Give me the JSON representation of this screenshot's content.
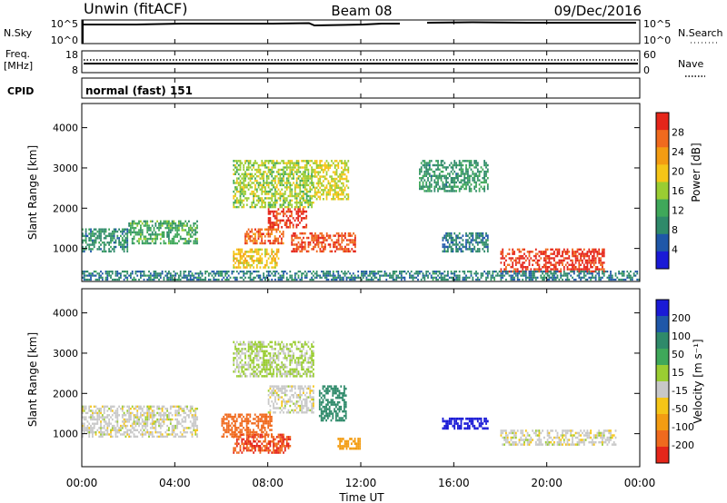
{
  "header": {
    "station": "Unwin (fitACF)",
    "beam": "Beam 08",
    "date": "09/Dec/2016"
  },
  "noise_panel": {
    "left_label": "N.Sky",
    "left_ticks": [
      "10^5",
      "10^0"
    ],
    "right_label": "N.Search",
    "right_ticks": [
      "10^5",
      "10^0"
    ]
  },
  "freq_panel": {
    "left_label_line1": "Freq.",
    "left_label_line2": "[MHz]",
    "left_ticks": [
      "18",
      "8"
    ],
    "right_label": "Nave",
    "right_ticks": [
      "60",
      "0"
    ]
  },
  "cpid_panel": {
    "label": "CPID",
    "text": "normal (fast) 151"
  },
  "x_axis": {
    "label": "Time UT",
    "ticks": [
      "00:00",
      "04:00",
      "08:00",
      "12:00",
      "16:00",
      "20:00",
      "00:00"
    ]
  },
  "colors": {
    "power_scale": [
      "#1a1ad6",
      "#1f57a8",
      "#2f8a6a",
      "#3fa85a",
      "#9acd32",
      "#f5c518",
      "#f39c12",
      "#f06a1e",
      "#e5261a"
    ],
    "velocity_scale": [
      "#e5261a",
      "#f06a1e",
      "#f39c12",
      "#f5c518",
      "#c8c8c8",
      "#9acd32",
      "#3fa85a",
      "#2f8a6a",
      "#1f57a8",
      "#1a1ad6"
    ]
  },
  "chart_data": [
    {
      "type": "heatmap",
      "title": "Power",
      "xlabel": "Time UT",
      "ylabel": "Slant Range [km]",
      "xlim": [
        "00:00",
        "24:00"
      ],
      "ylim": [
        180,
        4600
      ],
      "y_ticks": [
        "1000",
        "2000",
        "3000",
        "4000"
      ],
      "colorbar": {
        "label": "Power [dB]",
        "range": [
          0,
          32
        ],
        "ticks": [
          "4",
          "8",
          "12",
          "16",
          "20",
          "24",
          "28"
        ]
      },
      "regions": [
        {
          "t": [
            0.0,
            2.0
          ],
          "r": [
            900,
            1500
          ],
          "value": 9
        },
        {
          "t": [
            2.0,
            5.0
          ],
          "r": [
            1100,
            1700
          ],
          "value": 12
        },
        {
          "t": [
            6.5,
            10.0
          ],
          "r": [
            2000,
            3200
          ],
          "value": 16
        },
        {
          "t": [
            8.0,
            9.7
          ],
          "r": [
            1500,
            2000
          ],
          "value": 30
        },
        {
          "t": [
            7.0,
            8.7
          ],
          "r": [
            1100,
            1500
          ],
          "value": 27
        },
        {
          "t": [
            6.5,
            8.5
          ],
          "r": [
            500,
            1000
          ],
          "value": 20
        },
        {
          "t": [
            9.0,
            11.8
          ],
          "r": [
            900,
            1400
          ],
          "value": 28
        },
        {
          "t": [
            10.0,
            11.5
          ],
          "r": [
            2200,
            3200
          ],
          "value": 18
        },
        {
          "t": [
            14.5,
            17.5
          ],
          "r": [
            2400,
            3200
          ],
          "value": 10
        },
        {
          "t": [
            15.5,
            17.5
          ],
          "r": [
            900,
            1400
          ],
          "value": 8
        },
        {
          "t": [
            18.0,
            22.5
          ],
          "r": [
            400,
            1000
          ],
          "value": 30
        },
        {
          "t": [
            0.0,
            24.0
          ],
          "r": [
            200,
            450
          ],
          "value": 8
        }
      ]
    },
    {
      "type": "heatmap",
      "title": "Velocity",
      "xlabel": "Time UT",
      "ylabel": "Slant Range [km]",
      "xlim": [
        "00:00",
        "24:00"
      ],
      "ylim": [
        180,
        4600
      ],
      "y_ticks": [
        "1000",
        "2000",
        "3000",
        "4000"
      ],
      "colorbar": {
        "label": "Velocity [m s⁻¹]",
        "ticks": [
          "200",
          "100",
          "50",
          "15",
          "-15",
          "-50",
          "-100",
          "-200"
        ]
      },
      "regions": [
        {
          "t": [
            0.0,
            5.0
          ],
          "r": [
            900,
            1700
          ],
          "value": 0
        },
        {
          "t": [
            6.5,
            9.0
          ],
          "r": [
            500,
            1000
          ],
          "value": -200
        },
        {
          "t": [
            6.0,
            8.2
          ],
          "r": [
            900,
            1500
          ],
          "value": -160
        },
        {
          "t": [
            8.0,
            10.0
          ],
          "r": [
            1500,
            2200
          ],
          "value": 0
        },
        {
          "t": [
            10.2,
            11.4
          ],
          "r": [
            1300,
            2200
          ],
          "value": 150
        },
        {
          "t": [
            11.0,
            12.0
          ],
          "r": [
            600,
            900
          ],
          "value": -80
        },
        {
          "t": [
            15.5,
            17.5
          ],
          "r": [
            1100,
            1400
          ],
          "value": 220
        },
        {
          "t": [
            18.0,
            23.0
          ],
          "r": [
            700,
            1100
          ],
          "value": 0
        },
        {
          "t": [
            6.5,
            10.0
          ],
          "r": [
            2400,
            3300
          ],
          "value": 20
        }
      ]
    }
  ]
}
